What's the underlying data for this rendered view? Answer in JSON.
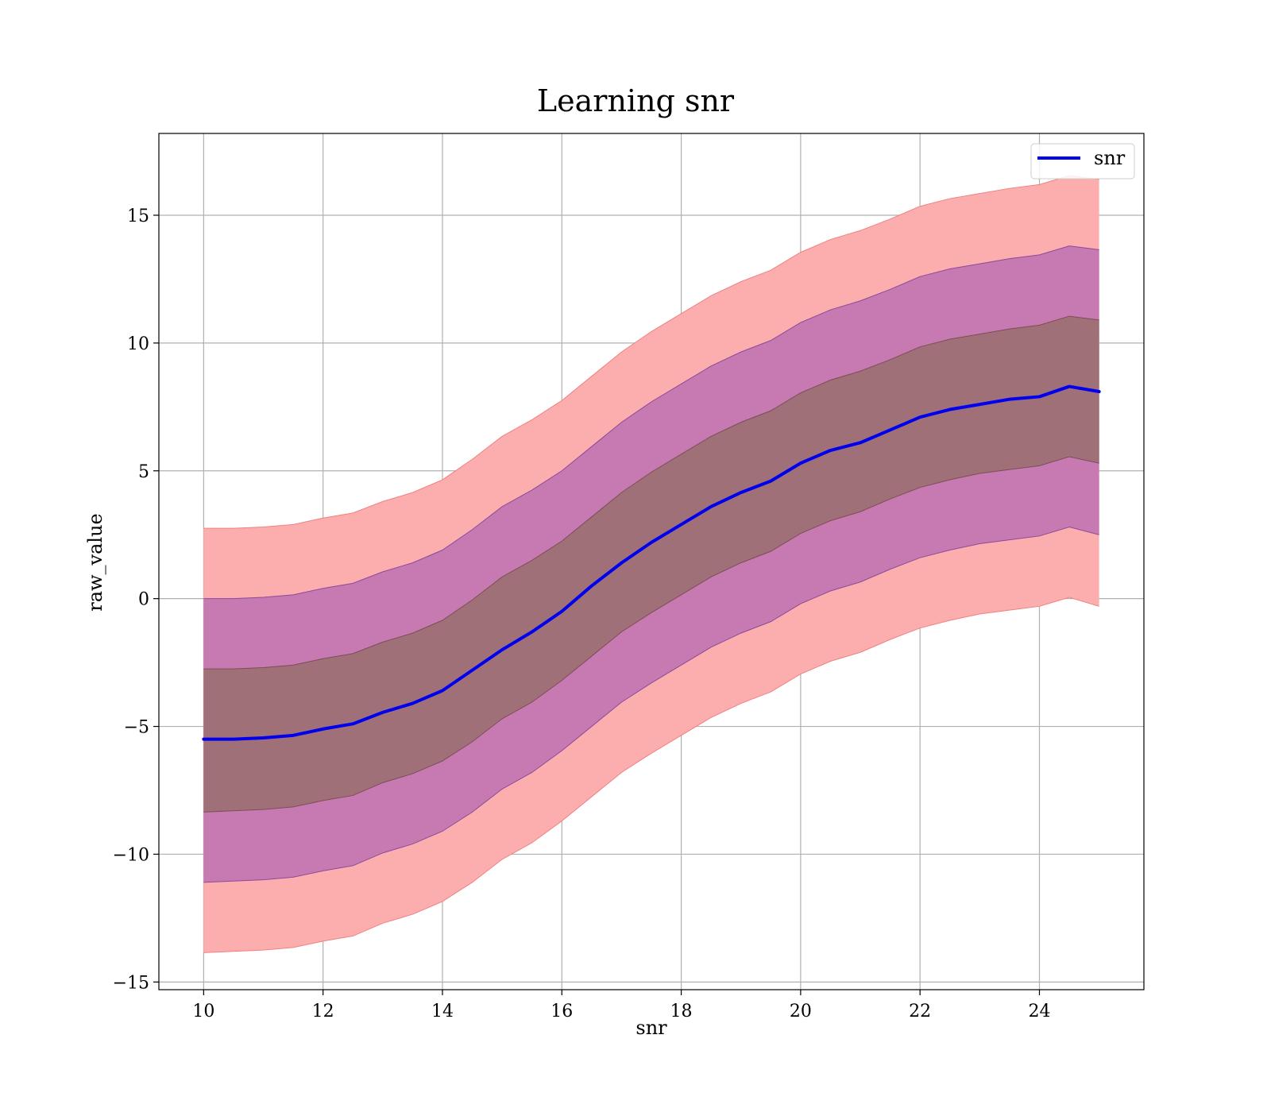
{
  "chart_data": {
    "type": "line",
    "title": "Learning snr",
    "xlabel": "snr",
    "ylabel": "raw_value",
    "xlim": [
      9.25,
      25.75
    ],
    "ylim": [
      -15.3,
      18.2
    ],
    "x_ticks": [
      10,
      12,
      14,
      16,
      18,
      20,
      22,
      24
    ],
    "y_ticks": [
      -15,
      -10,
      -5,
      0,
      5,
      10,
      15
    ],
    "y_tick_labels": [
      "−15",
      "−10",
      "−5",
      "0",
      "5",
      "10",
      "15"
    ],
    "grid": true,
    "legend": {
      "placement": "top-right",
      "entries": [
        "snr"
      ]
    },
    "colors": {
      "line": "#0000ee",
      "band_outer": "#fcaeae",
      "band_outer_edge": "#f08080",
      "band_middle": "#c77ab1",
      "band_middle_edge": "#8a4a9a",
      "band_inner": "#a07078",
      "band_inner_edge": "#7a4e56",
      "grid": "#b0b0b0"
    },
    "x": [
      10,
      10.5,
      11,
      11.5,
      12,
      12.5,
      13,
      13.5,
      14,
      14.5,
      15,
      15.5,
      16,
      16.5,
      17,
      17.5,
      18,
      18.5,
      19,
      19.5,
      20,
      20.5,
      21,
      21.5,
      22,
      22.5,
      23,
      23.5,
      24,
      24.5,
      25
    ],
    "series": [
      {
        "name": "snr",
        "values": [
          -5.5,
          -5.5,
          -5.45,
          -5.35,
          -5.1,
          -4.9,
          -4.45,
          -4.1,
          -3.6,
          -2.8,
          -2.0,
          -1.3,
          -0.5,
          0.5,
          1.4,
          2.2,
          2.9,
          3.6,
          4.15,
          4.6,
          5.3,
          5.8,
          6.1,
          6.6,
          7.1,
          7.4,
          7.6,
          7.8,
          7.9,
          8.3,
          8.1
        ],
        "band_inner": {
          "lower": [
            -8.35,
            -8.3,
            -8.25,
            -8.15,
            -7.9,
            -7.7,
            -7.2,
            -6.85,
            -6.35,
            -5.6,
            -4.7,
            -4.05,
            -3.2,
            -2.25,
            -1.3,
            -0.55,
            0.15,
            0.85,
            1.4,
            1.85,
            2.55,
            3.05,
            3.4,
            3.9,
            4.35,
            4.65,
            4.9,
            5.05,
            5.2,
            5.55,
            5.3
          ],
          "upper": [
            -2.75,
            -2.75,
            -2.7,
            -2.6,
            -2.35,
            -2.15,
            -1.7,
            -1.35,
            -0.85,
            -0.05,
            0.85,
            1.5,
            2.25,
            3.2,
            4.15,
            4.95,
            5.65,
            6.35,
            6.9,
            7.35,
            8.05,
            8.55,
            8.9,
            9.35,
            9.85,
            10.15,
            10.35,
            10.55,
            10.7,
            11.05,
            10.9
          ]
        },
        "band_middle": {
          "lower": [
            -11.1,
            -11.05,
            -11.0,
            -10.9,
            -10.65,
            -10.45,
            -9.95,
            -9.6,
            -9.1,
            -8.35,
            -7.45,
            -6.8,
            -5.95,
            -5.0,
            -4.05,
            -3.3,
            -2.6,
            -1.9,
            -1.35,
            -0.9,
            -0.2,
            0.3,
            0.65,
            1.15,
            1.6,
            1.9,
            2.15,
            2.3,
            2.45,
            2.8,
            2.5
          ],
          "upper": [
            0.0,
            0.0,
            0.05,
            0.15,
            0.4,
            0.6,
            1.05,
            1.4,
            1.9,
            2.7,
            3.6,
            4.25,
            5.0,
            5.95,
            6.9,
            7.7,
            8.4,
            9.1,
            9.65,
            10.1,
            10.8,
            11.3,
            11.65,
            12.1,
            12.6,
            12.9,
            13.1,
            13.3,
            13.45,
            13.8,
            13.65
          ]
        },
        "band_outer": {
          "lower": [
            -13.85,
            -13.8,
            -13.75,
            -13.65,
            -13.4,
            -13.2,
            -12.7,
            -12.35,
            -11.85,
            -11.1,
            -10.2,
            -9.55,
            -8.7,
            -7.75,
            -6.8,
            -6.05,
            -5.35,
            -4.65,
            -4.1,
            -3.65,
            -2.95,
            -2.45,
            -2.1,
            -1.6,
            -1.15,
            -0.85,
            -0.6,
            -0.45,
            -0.3,
            0.05,
            -0.3
          ],
          "upper": [
            2.75,
            2.75,
            2.8,
            2.9,
            3.15,
            3.35,
            3.8,
            4.15,
            4.65,
            5.45,
            6.35,
            7.0,
            7.75,
            8.7,
            9.65,
            10.45,
            11.15,
            11.85,
            12.4,
            12.85,
            13.55,
            14.05,
            14.4,
            14.85,
            15.35,
            15.65,
            15.85,
            16.05,
            16.2,
            16.55,
            16.4
          ]
        }
      }
    ]
  }
}
